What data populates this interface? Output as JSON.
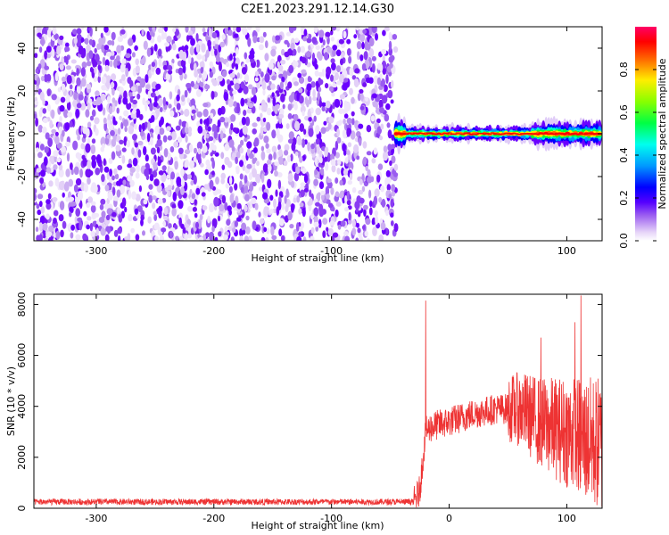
{
  "figure": {
    "title": "C2E1.2023.291.12.14.G30"
  },
  "chart_data": [
    {
      "type": "heatmap",
      "xlabel": "Height of straight line (km)",
      "ylabel": "Frequency (Hz)",
      "xlim": [
        -353,
        130
      ],
      "ylim": [
        -50,
        50
      ],
      "xticks": [
        -300,
        -200,
        -100,
        0,
        100
      ],
      "yticks": [
        -40,
        -20,
        0,
        20,
        40
      ],
      "grid": false,
      "noise_region_x": [
        -353,
        -45
      ],
      "signal_region_x": [
        -45,
        130
      ],
      "signal_frequency_hz": 0,
      "colorbar": {
        "label": "Normalized spectral amplitude",
        "range": [
          0,
          1
        ],
        "ticks": [
          "0.0",
          "0.2",
          "0.4",
          "0.6",
          "0.8"
        ],
        "colormap": [
          "#ffffff",
          "#e6d4f8",
          "#9a5cf0",
          "#6a00ff",
          "#0000ff",
          "#00aaff",
          "#00ffcc",
          "#00ff00",
          "#ffff00",
          "#ff8800",
          "#ff0000",
          "#ff0066"
        ]
      }
    },
    {
      "type": "line",
      "xlabel": "Height of straight line (km)",
      "ylabel": "SNR (10 * v/v)",
      "xlim": [
        -353,
        130
      ],
      "ylim": [
        0,
        8400
      ],
      "xticks": [
        -300,
        -200,
        -100,
        0,
        100
      ],
      "yticks": [
        0,
        2000,
        4000,
        6000,
        8000
      ],
      "grid": false,
      "color": "#ee3333",
      "series_outline": {
        "x": [
          -353,
          -30,
          -25,
          -20,
          -15,
          0,
          20,
          40,
          60,
          80,
          100,
          115,
          130
        ],
        "y": [
          250,
          250,
          700,
          3000,
          3200,
          3400,
          3700,
          3900,
          3900,
          3300,
          3000,
          2700,
          2500
        ]
      },
      "spikes": [
        {
          "x": -20,
          "y": 8150
        },
        {
          "x": 78,
          "y": 6700
        },
        {
          "x": 107,
          "y": 7300
        },
        {
          "x": 112,
          "y": 8350
        }
      ]
    }
  ]
}
